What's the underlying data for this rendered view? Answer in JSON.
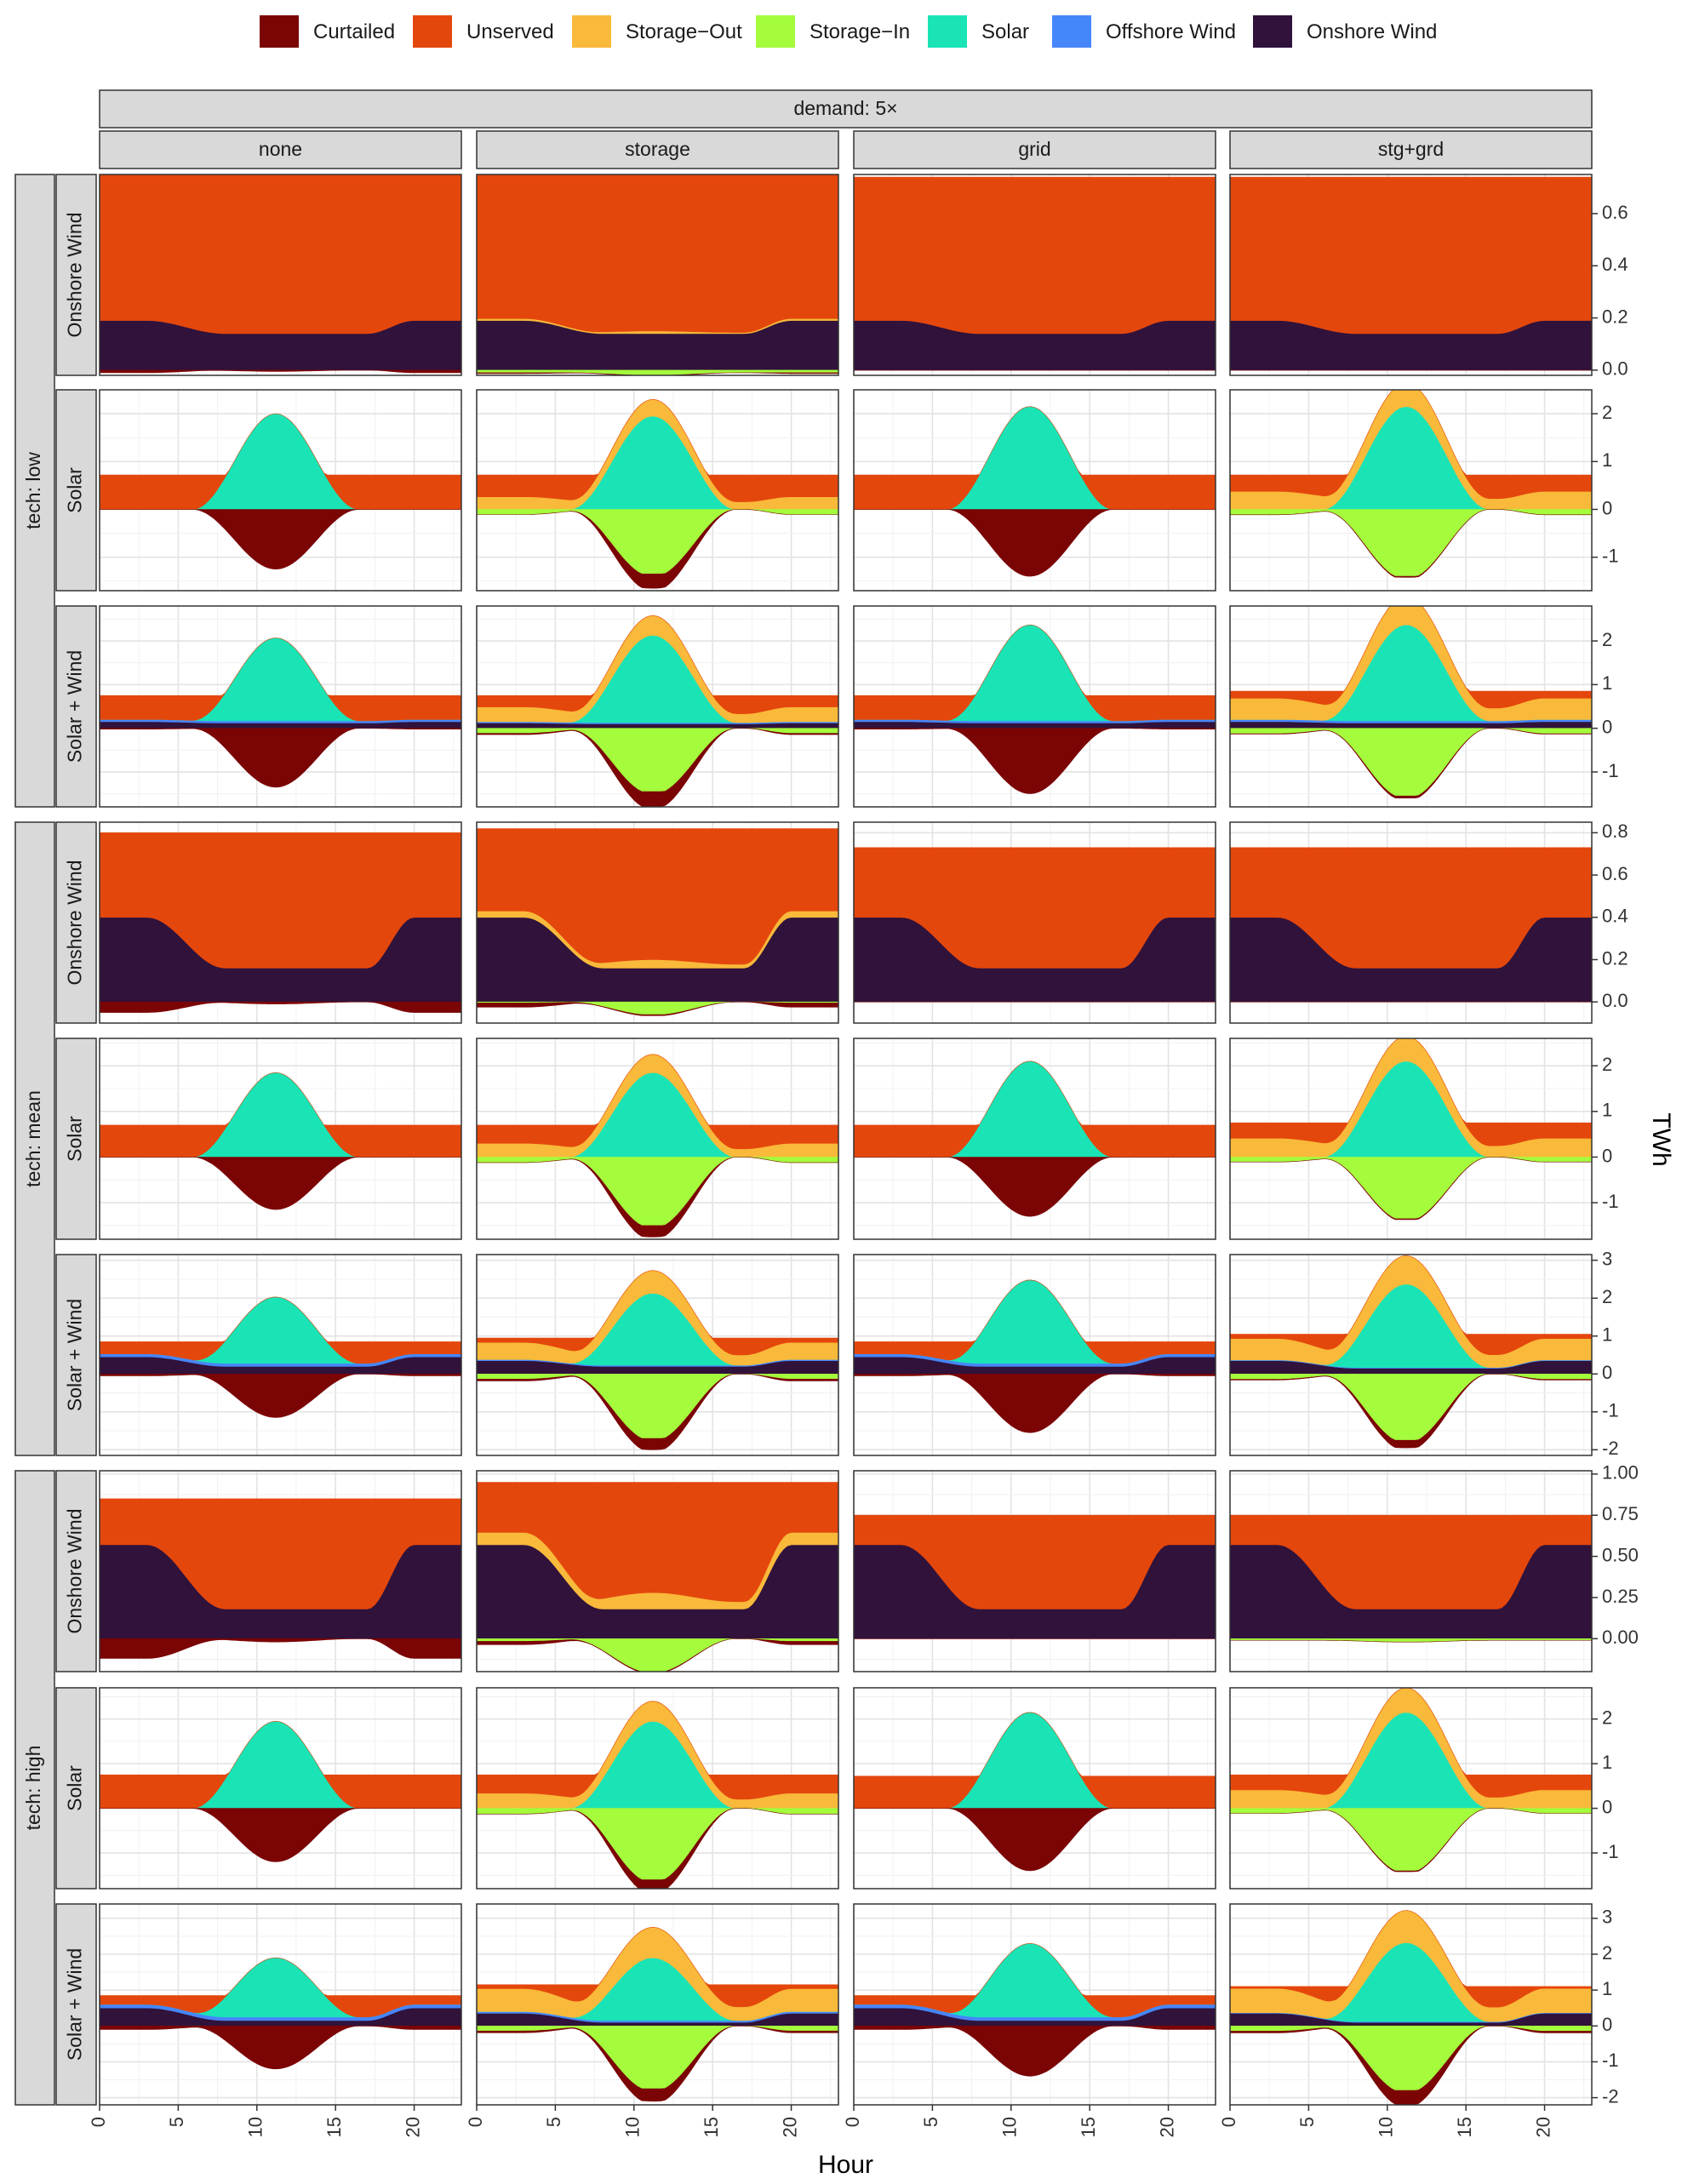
{
  "chart_data": {
    "type": "area",
    "title": "",
    "facet_top": "demand: 5×",
    "col_labels": [
      "none",
      "storage",
      "grid",
      "stg+grd"
    ],
    "tech_labels": [
      "tech: low",
      "tech: mean",
      "tech: high"
    ],
    "row_labels": [
      "Onshore Wind",
      "Solar",
      "Solar + Wind"
    ],
    "xlabel": "Hour",
    "ylabel": "TWh",
    "x_ticks": [
      "0",
      "5",
      "10",
      "15",
      "20"
    ],
    "x_range": [
      0,
      23
    ],
    "legend_position": "top",
    "legend": [
      {
        "name": "Curtailed",
        "color": "#7B0405"
      },
      {
        "name": "Unserved",
        "color": "#E4470C"
      },
      {
        "name": "Storage−Out",
        "color": "#F9B93A"
      },
      {
        "name": "Storage−In",
        "color": "#A4FC3C"
      },
      {
        "name": "Solar",
        "color": "#1AE4B6"
      },
      {
        "name": "Offshore Wind",
        "color": "#4686FB"
      },
      {
        "name": "Onshore Wind",
        "color": "#30123B"
      }
    ],
    "y_axes": [
      {
        "ylim": [
          -0.02,
          0.75
        ],
        "ticks": [
          "0.0",
          "0.2",
          "0.4",
          "0.6"
        ],
        "tick_values": [
          0,
          0.2,
          0.4,
          0.6
        ]
      },
      {
        "ylim": [
          -1.7,
          2.5
        ],
        "ticks": [
          "-1",
          "0",
          "1",
          "2"
        ],
        "tick_values": [
          -1,
          0,
          1,
          2
        ]
      },
      {
        "ylim": [
          -1.8,
          2.8
        ],
        "ticks": [
          "-1",
          "0",
          "1",
          "2"
        ],
        "tick_values": [
          -1,
          0,
          1,
          2
        ]
      },
      {
        "ylim": [
          -0.1,
          0.85
        ],
        "ticks": [
          "0.0",
          "0.2",
          "0.4",
          "0.6",
          "0.8"
        ],
        "tick_values": [
          0,
          0.2,
          0.4,
          0.6,
          0.8
        ]
      },
      {
        "ylim": [
          -1.8,
          2.6
        ],
        "ticks": [
          "-1",
          "0",
          "1",
          "2"
        ],
        "tick_values": [
          -1,
          0,
          1,
          2
        ]
      },
      {
        "ylim": [
          -2.15,
          3.15
        ],
        "ticks": [
          "-2",
          "-1",
          "0",
          "1",
          "2",
          "3"
        ],
        "tick_values": [
          -2,
          -1,
          0,
          1,
          2,
          3
        ]
      },
      {
        "ylim": [
          -0.2,
          1.02
        ],
        "ticks": [
          "0.00",
          "0.25",
          "0.50",
          "0.75",
          "1.00"
        ],
        "tick_values": [
          0,
          0.25,
          0.5,
          0.75,
          1.0
        ]
      },
      {
        "ylim": [
          -1.8,
          2.7
        ],
        "ticks": [
          "-1",
          "0",
          "1",
          "2"
        ],
        "tick_values": [
          -1,
          0,
          1,
          2
        ]
      },
      {
        "ylim": [
          -2.2,
          3.4
        ],
        "ticks": [
          "-2",
          "-1",
          "0",
          "1",
          "2",
          "3"
        ],
        "tick_values": [
          -2,
          -1,
          0,
          1,
          2,
          3
        ]
      }
    ],
    "panels": [
      {
        "row": 0,
        "col": 0,
        "demand": 0.75,
        "onshore": [
          0.19,
          0.14
        ],
        "offshore": 0,
        "solar": 0,
        "storage_out": 0,
        "storage_in": 0,
        "curtailed": [
          0.01,
          0.005
        ]
      },
      {
        "row": 0,
        "col": 1,
        "demand": 0.75,
        "onshore": [
          0.19,
          0.14
        ],
        "offshore": 0,
        "solar": 0,
        "storage_out": 0.01,
        "storage_in": 0.01,
        "curtailed": [
          0.003,
          0.003
        ]
      },
      {
        "row": 0,
        "col": 2,
        "demand": 0.74,
        "onshore": [
          0.19,
          0.14
        ],
        "offshore": 0,
        "solar": 0,
        "storage_out": 0,
        "storage_in": 0,
        "curtailed": [
          0,
          0
        ]
      },
      {
        "row": 0,
        "col": 3,
        "demand": 0.74,
        "onshore": [
          0.19,
          0.14
        ],
        "offshore": 0,
        "solar": 0,
        "storage_out": 0,
        "storage_in": 0,
        "curtailed": [
          0,
          0
        ]
      },
      {
        "row": 1,
        "col": 0,
        "demand": 0.72,
        "onshore": [
          0,
          0
        ],
        "offshore": 0,
        "solar": 2.0,
        "storage_out": 0,
        "storage_in": 0,
        "curtailed": [
          0,
          1.25
        ]
      },
      {
        "row": 1,
        "col": 1,
        "demand": 0.72,
        "onshore": [
          0,
          0
        ],
        "offshore": 0,
        "solar": 1.95,
        "storage_out": 0.35,
        "storage_in": 1.35,
        "curtailed": [
          0,
          0.3
        ]
      },
      {
        "row": 1,
        "col": 2,
        "demand": 0.72,
        "onshore": [
          0,
          0
        ],
        "offshore": 0,
        "solar": 2.15,
        "storage_out": 0,
        "storage_in": 0,
        "curtailed": [
          0,
          1.4
        ]
      },
      {
        "row": 1,
        "col": 3,
        "demand": 0.72,
        "onshore": [
          0,
          0
        ],
        "offshore": 0,
        "solar": 2.15,
        "storage_out": 0.5,
        "storage_in": 1.4,
        "curtailed": [
          0,
          0.02
        ]
      },
      {
        "row": 2,
        "col": 0,
        "demand": 0.75,
        "onshore": [
          0.15,
          0.12
        ],
        "offshore": 0.05,
        "solar": 1.9,
        "storage_out": 0,
        "storage_in": 0,
        "curtailed": [
          0.02,
          1.35
        ]
      },
      {
        "row": 2,
        "col": 1,
        "demand": 0.75,
        "onshore": [
          0.12,
          0.1
        ],
        "offshore": 0.03,
        "solar": 2.0,
        "storage_out": 0.45,
        "storage_in": 1.45,
        "curtailed": [
          0.03,
          0.35
        ]
      },
      {
        "row": 2,
        "col": 2,
        "demand": 0.75,
        "onshore": [
          0.15,
          0.12
        ],
        "offshore": 0.05,
        "solar": 2.2,
        "storage_out": 0,
        "storage_in": 0,
        "curtailed": [
          0.02,
          1.5
        ]
      },
      {
        "row": 2,
        "col": 3,
        "demand": 0.85,
        "onshore": [
          0.15,
          0.12
        ],
        "offshore": 0.05,
        "solar": 2.2,
        "storage_out": 0.65,
        "storage_in": 1.55,
        "curtailed": [
          0.01,
          0.05
        ]
      },
      {
        "row": 3,
        "col": 0,
        "demand": 0.8,
        "onshore": [
          0.4,
          0.16
        ],
        "offshore": 0,
        "solar": 0,
        "storage_out": 0,
        "storage_in": 0,
        "curtailed": [
          0.05,
          0.01
        ]
      },
      {
        "row": 3,
        "col": 1,
        "demand": 0.82,
        "onshore": [
          0.4,
          0.16
        ],
        "offshore": 0,
        "solar": 0,
        "storage_out": 0.04,
        "storage_in": 0.06,
        "curtailed": [
          0.02,
          0.005
        ]
      },
      {
        "row": 3,
        "col": 2,
        "demand": 0.73,
        "onshore": [
          0.4,
          0.16
        ],
        "offshore": 0,
        "solar": 0,
        "storage_out": 0,
        "storage_in": 0,
        "curtailed": [
          0,
          0
        ]
      },
      {
        "row": 3,
        "col": 3,
        "demand": 0.73,
        "onshore": [
          0.4,
          0.16
        ],
        "offshore": 0,
        "solar": 0,
        "storage_out": 0,
        "storage_in": 0,
        "curtailed": [
          0,
          0
        ]
      },
      {
        "row": 4,
        "col": 0,
        "demand": 0.7,
        "onshore": [
          0,
          0
        ],
        "offshore": 0,
        "solar": 1.85,
        "storage_out": 0,
        "storage_in": 0,
        "curtailed": [
          0,
          1.15
        ]
      },
      {
        "row": 4,
        "col": 1,
        "demand": 0.7,
        "onshore": [
          0,
          0
        ],
        "offshore": 0,
        "solar": 1.85,
        "storage_out": 0.4,
        "storage_in": 1.5,
        "curtailed": [
          0,
          0.25
        ]
      },
      {
        "row": 4,
        "col": 2,
        "demand": 0.7,
        "onshore": [
          0,
          0
        ],
        "offshore": 0,
        "solar": 2.1,
        "storage_out": 0,
        "storage_in": 0,
        "curtailed": [
          0,
          1.3
        ]
      },
      {
        "row": 4,
        "col": 3,
        "demand": 0.75,
        "onshore": [
          0,
          0
        ],
        "offshore": 0,
        "solar": 2.1,
        "storage_out": 0.55,
        "storage_in": 1.35,
        "curtailed": [
          0,
          0.02
        ]
      },
      {
        "row": 5,
        "col": 0,
        "demand": 0.85,
        "onshore": [
          0.45,
          0.2
        ],
        "offshore": 0.08,
        "solar": 1.75,
        "storage_out": 0,
        "storage_in": 0,
        "curtailed": [
          0.05,
          1.15
        ]
      },
      {
        "row": 5,
        "col": 1,
        "demand": 0.95,
        "onshore": [
          0.35,
          0.2
        ],
        "offshore": 0.03,
        "solar": 1.9,
        "storage_out": 0.6,
        "storage_in": 1.7,
        "curtailed": [
          0.05,
          0.3
        ]
      },
      {
        "row": 5,
        "col": 2,
        "demand": 0.85,
        "onshore": [
          0.45,
          0.2
        ],
        "offshore": 0.08,
        "solar": 2.2,
        "storage_out": 0,
        "storage_in": 0,
        "curtailed": [
          0.05,
          1.55
        ]
      },
      {
        "row": 5,
        "col": 3,
        "demand": 1.05,
        "onshore": [
          0.35,
          0.15
        ],
        "offshore": 0.02,
        "solar": 2.2,
        "storage_out": 0.75,
        "storage_in": 1.75,
        "curtailed": [
          0.02,
          0.2
        ]
      },
      {
        "row": 6,
        "col": 0,
        "demand": 0.85,
        "onshore": [
          0.57,
          0.18
        ],
        "offshore": 0,
        "solar": 0,
        "storage_out": 0,
        "storage_in": 0,
        "curtailed": [
          0.12,
          0.02
        ]
      },
      {
        "row": 6,
        "col": 1,
        "demand": 0.95,
        "onshore": [
          0.57,
          0.18
        ],
        "offshore": 0,
        "solar": 0,
        "storage_out": 0.1,
        "storage_in": 0.2,
        "curtailed": [
          0.02,
          0.005
        ]
      },
      {
        "row": 6,
        "col": 2,
        "demand": 0.75,
        "onshore": [
          0.57,
          0.18
        ],
        "offshore": 0,
        "solar": 0,
        "storage_out": 0,
        "storage_in": 0,
        "curtailed": [
          0,
          0
        ]
      },
      {
        "row": 6,
        "col": 3,
        "demand": 0.75,
        "onshore": [
          0.57,
          0.18
        ],
        "offshore": 0,
        "solar": 0,
        "storage_out": 0,
        "storage_in": 0.01,
        "curtailed": [
          0,
          0
        ]
      },
      {
        "row": 7,
        "col": 0,
        "demand": 0.75,
        "onshore": [
          0,
          0
        ],
        "offshore": 0,
        "solar": 1.95,
        "storage_out": 0,
        "storage_in": 0,
        "curtailed": [
          0,
          1.2
        ]
      },
      {
        "row": 7,
        "col": 1,
        "demand": 0.75,
        "onshore": [
          0,
          0
        ],
        "offshore": 0,
        "solar": 1.95,
        "storage_out": 0.45,
        "storage_in": 1.6,
        "curtailed": [
          0,
          0.25
        ]
      },
      {
        "row": 7,
        "col": 2,
        "demand": 0.72,
        "onshore": [
          0,
          0
        ],
        "offshore": 0,
        "solar": 2.15,
        "storage_out": 0,
        "storage_in": 0,
        "curtailed": [
          0,
          1.4
        ]
      },
      {
        "row": 7,
        "col": 3,
        "demand": 0.75,
        "onshore": [
          0,
          0
        ],
        "offshore": 0,
        "solar": 2.15,
        "storage_out": 0.55,
        "storage_in": 1.4,
        "curtailed": [
          0,
          0.02
        ]
      },
      {
        "row": 8,
        "col": 0,
        "demand": 0.85,
        "onshore": [
          0.5,
          0.15
        ],
        "offshore": 0.1,
        "solar": 1.65,
        "storage_out": 0,
        "storage_in": 0,
        "curtailed": [
          0.1,
          1.2
        ]
      },
      {
        "row": 8,
        "col": 1,
        "demand": 1.15,
        "onshore": [
          0.35,
          0.1
        ],
        "offshore": 0.05,
        "solar": 1.75,
        "storage_out": 0.85,
        "storage_in": 1.75,
        "curtailed": [
          0.05,
          0.35
        ]
      },
      {
        "row": 8,
        "col": 2,
        "demand": 0.85,
        "onshore": [
          0.5,
          0.15
        ],
        "offshore": 0.1,
        "solar": 2.05,
        "storage_out": 0,
        "storage_in": 0,
        "curtailed": [
          0.1,
          1.4
        ]
      },
      {
        "row": 8,
        "col": 3,
        "demand": 1.1,
        "onshore": [
          0.35,
          0.1
        ],
        "offshore": 0.02,
        "solar": 2.2,
        "storage_out": 0.9,
        "storage_in": 1.8,
        "curtailed": [
          0.05,
          0.4
        ]
      }
    ]
  }
}
